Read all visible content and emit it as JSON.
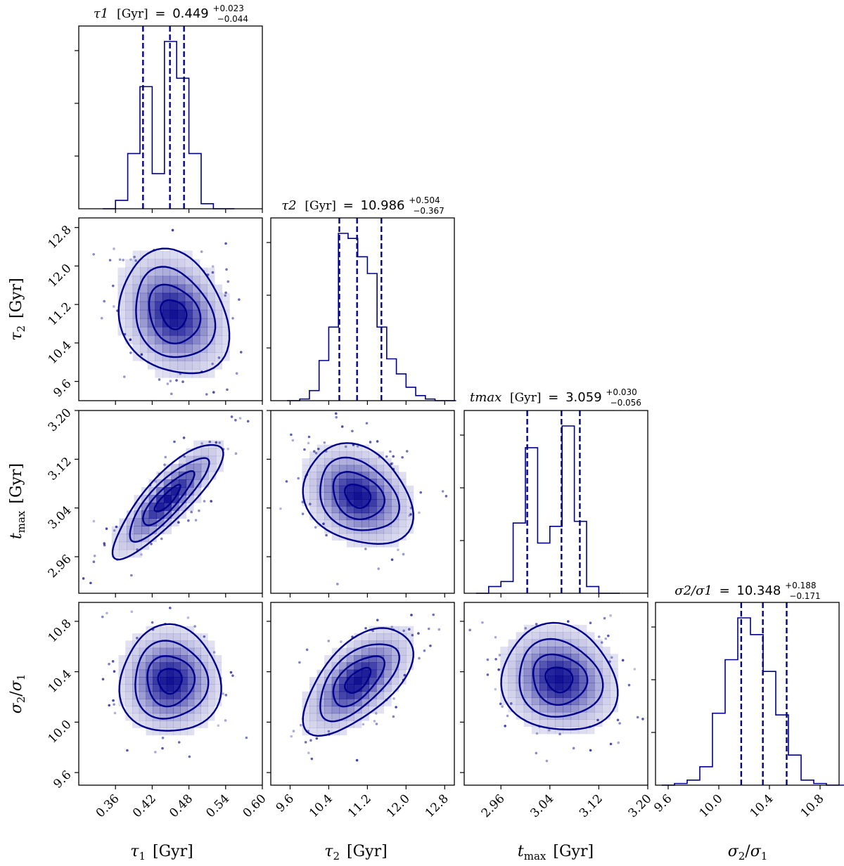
{
  "colors": {
    "main": "#00008b",
    "frame": "#000000",
    "background": "#ffffff"
  },
  "chart_data": {
    "type": "corner",
    "parameters": [
      {
        "key": "tau1",
        "label": "τ1 [Gyr]",
        "symbol": "τ",
        "sub": "1",
        "unit": "[Gyr]",
        "range": [
          0.3,
          0.6
        ],
        "ticks": [
          "0.36",
          "0.42",
          "0.48",
          "0.54",
          "0.60"
        ]
      },
      {
        "key": "tau2",
        "label": "τ2 [Gyr]",
        "symbol": "τ",
        "sub": "2",
        "unit": "[Gyr]",
        "range": [
          9.2,
          13.0
        ],
        "ticks": [
          "9.6",
          "10.4",
          "11.2",
          "12.0",
          "12.8"
        ]
      },
      {
        "key": "tmax",
        "label": "tmax [Gyr]",
        "symbol": "t",
        "sub": "max",
        "unit": "[Gyr]",
        "range": [
          2.9,
          3.2
        ],
        "ticks": [
          "2.96",
          "3.04",
          "3.12",
          "3.20"
        ]
      },
      {
        "key": "ratio",
        "label": "σ2/σ1",
        "symbol": "σ2/σ1",
        "sub": "",
        "unit": "",
        "range": [
          9.5,
          10.95
        ],
        "ticks": [
          "9.6",
          "10.0",
          "10.4",
          "10.8"
        ]
      }
    ],
    "titles": [
      {
        "name": "τ1",
        "unit": "[Gyr]",
        "median": "0.449",
        "plus": "+0.023",
        "minus": "−0.044"
      },
      {
        "name": "τ2",
        "unit": "[Gyr]",
        "median": "10.986",
        "plus": "+0.504",
        "minus": "−0.367"
      },
      {
        "name": "tmax",
        "unit": "[Gyr]",
        "median": "3.059",
        "plus": "+0.030",
        "minus": "−0.056"
      },
      {
        "name": "σ2/σ1",
        "unit": "",
        "median": "10.348",
        "plus": "+0.188",
        "minus": "−0.171"
      }
    ],
    "histograms": [
      {
        "param": "tau1",
        "bin_edges": [
          0.36,
          0.38,
          0.4,
          0.42,
          0.44,
          0.46,
          0.48,
          0.5,
          0.52
        ],
        "counts": [
          0.05,
          0.33,
          0.73,
          0.21,
          1.0,
          0.78,
          0.33,
          0.03
        ],
        "quantiles": [
          0.405,
          0.449,
          0.472
        ]
      },
      {
        "param": "tau2",
        "bin_edges": [
          9.8,
          10.0,
          10.2,
          10.4,
          10.6,
          10.8,
          11.0,
          11.2,
          11.4,
          11.6,
          11.8,
          12.0,
          12.2,
          12.4,
          12.6
        ],
        "counts": [
          0.01,
          0.06,
          0.24,
          0.44,
          1.0,
          0.97,
          0.86,
          0.76,
          0.44,
          0.25,
          0.16,
          0.08,
          0.03,
          0.01
        ],
        "quantiles": [
          10.619,
          10.986,
          11.49
        ]
      },
      {
        "param": "tmax",
        "bin_edges": [
          2.94,
          2.96,
          2.98,
          3.0,
          3.02,
          3.04,
          3.06,
          3.08,
          3.1,
          3.12
        ],
        "counts": [
          0.04,
          0.07,
          0.42,
          0.87,
          0.3,
          0.4,
          1.0,
          0.43,
          0.04
        ],
        "quantiles": [
          3.003,
          3.059,
          3.089
        ]
      },
      {
        "param": "ratio",
        "bin_edges": [
          9.65,
          9.75,
          9.85,
          9.95,
          10.05,
          10.15,
          10.25,
          10.35,
          10.45,
          10.55,
          10.65,
          10.75,
          10.85
        ],
        "counts": [
          0.01,
          0.03,
          0.11,
          0.43,
          0.75,
          1.0,
          0.9,
          0.68,
          0.42,
          0.18,
          0.03,
          0.01
        ],
        "quantiles": [
          10.177,
          10.348,
          10.536
        ]
      }
    ],
    "pairs": [
      {
        "x": "tau1",
        "y": "tau2",
        "center": [
          0.455,
          11.0
        ],
        "sd": [
          0.038,
          0.55
        ],
        "corr": -0.2
      },
      {
        "x": "tau1",
        "y": "tmax",
        "center": [
          0.445,
          3.055
        ],
        "sd": [
          0.038,
          0.04
        ],
        "corr": 0.85
      },
      {
        "x": "tau2",
        "y": "tmax",
        "center": [
          11.0,
          3.06
        ],
        "sd": [
          0.48,
          0.035
        ],
        "corr": -0.25
      },
      {
        "x": "tau1",
        "y": "ratio",
        "center": [
          0.449,
          10.33
        ],
        "sd": [
          0.035,
          0.18
        ],
        "corr": 0.0
      },
      {
        "x": "tau2",
        "y": "ratio",
        "center": [
          11.0,
          10.33
        ],
        "sd": [
          0.48,
          0.18
        ],
        "corr": 0.6
      },
      {
        "x": "tmax",
        "y": "ratio",
        "center": [
          3.055,
          10.34
        ],
        "sd": [
          0.04,
          0.18
        ],
        "corr": -0.1
      }
    ]
  }
}
